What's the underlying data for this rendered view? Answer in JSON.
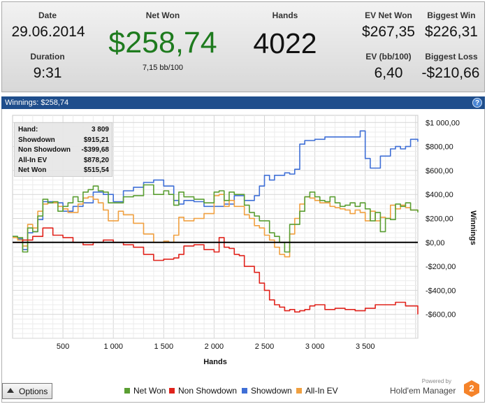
{
  "summary": {
    "date": {
      "label": "Date",
      "value": "29.06.2014"
    },
    "duration": {
      "label": "Duration",
      "value": "9:31"
    },
    "net_won": {
      "label": "Net Won",
      "value": "$258,74",
      "sub": "7,15 bb/100"
    },
    "hands": {
      "label": "Hands",
      "value": "4022"
    },
    "ev_net_won": {
      "label": "EV Net Won",
      "value": "$267,35"
    },
    "ev_bb100": {
      "label": "EV (bb/100)",
      "value": "6,40"
    },
    "biggest_win": {
      "label": "Biggest Win",
      "value": "$226,31"
    },
    "biggest_loss": {
      "label": "Biggest Loss",
      "value": "-$210,66"
    },
    "net_won_color": "#1e7b1e"
  },
  "panel": {
    "title": "Winnings:  $258,74",
    "help": "?"
  },
  "hand_box": [
    {
      "k": "Hand:",
      "v": "3 809"
    },
    {
      "k": "Showdown",
      "v": "$915,21"
    },
    {
      "k": "Non Showdown",
      "v": "-$399,68"
    },
    {
      "k": "All-In EV",
      "v": "$878,20"
    },
    {
      "k": "Net Won",
      "v": "$515,54"
    }
  ],
  "options_label": "Options",
  "brand": {
    "powered": "Powered by",
    "name": "Hold'em Manager",
    "logo": "2"
  },
  "chart_data": {
    "type": "line",
    "xlabel": "Hands",
    "ylabel": "Winnings",
    "xlim": [
      0,
      4022
    ],
    "ylim": [
      -800,
      1060
    ],
    "x_ticks": [
      500,
      1000,
      1500,
      2000,
      2500,
      3000,
      3500
    ],
    "x_tick_labels": [
      "500",
      "1 000",
      "1 500",
      "2 000",
      "2 500",
      "3 000",
      "3 500"
    ],
    "y_ticks": [
      1000,
      800,
      600,
      400,
      200,
      0,
      -200,
      -400,
      -600
    ],
    "y_tick_labels": [
      "$1 000,00",
      "$800,00",
      "$600,00",
      "$400,00",
      "$200,00",
      "$0,00",
      "-$200,00",
      "-$400,00",
      "-$600,00"
    ],
    "grid": true,
    "legend_position": "bottom",
    "series": [
      {
        "name": "Net Won",
        "color": "#5a9e32",
        "x": [
          0,
          50,
          100,
          150,
          200,
          250,
          300,
          350,
          400,
          450,
          500,
          550,
          600,
          650,
          700,
          750,
          800,
          850,
          900,
          950,
          1000,
          1100,
          1200,
          1300,
          1400,
          1500,
          1550,
          1600,
          1650,
          1700,
          1800,
          1900,
          2000,
          2050,
          2100,
          2150,
          2200,
          2300,
          2350,
          2400,
          2450,
          2500,
          2550,
          2600,
          2650,
          2700,
          2750,
          2800,
          2850,
          2900,
          2950,
          3000,
          3050,
          3100,
          3150,
          3200,
          3250,
          3300,
          3350,
          3400,
          3450,
          3500,
          3550,
          3600,
          3650,
          3700,
          3750,
          3800,
          3850,
          3900,
          3950,
          4022
        ],
        "y": [
          50,
          40,
          -80,
          120,
          90,
          220,
          360,
          330,
          340,
          260,
          300,
          330,
          380,
          340,
          420,
          440,
          470,
          430,
          420,
          330,
          330,
          380,
          390,
          480,
          400,
          430,
          400,
          310,
          420,
          380,
          360,
          330,
          420,
          430,
          350,
          420,
          400,
          310,
          250,
          220,
          180,
          180,
          80,
          50,
          0,
          -80,
          150,
          150,
          260,
          380,
          420,
          380,
          350,
          340,
          380,
          330,
          300,
          310,
          330,
          300,
          330,
          280,
          180,
          250,
          90,
          200,
          190,
          320,
          300,
          330,
          270,
          250
        ]
      },
      {
        "name": "Non Showdown",
        "color": "#e0231c",
        "x": [
          0,
          100,
          200,
          300,
          400,
          500,
          600,
          700,
          800,
          900,
          1000,
          1100,
          1200,
          1300,
          1400,
          1500,
          1600,
          1650,
          1700,
          1800,
          1900,
          2000,
          2050,
          2100,
          2150,
          2200,
          2250,
          2300,
          2400,
          2450,
          2500,
          2550,
          2600,
          2650,
          2700,
          2750,
          2800,
          2850,
          2900,
          2950,
          3000,
          3100,
          3200,
          3300,
          3400,
          3500,
          3600,
          3700,
          3800,
          3900,
          4022
        ],
        "y": [
          0,
          20,
          50,
          120,
          60,
          40,
          0,
          -20,
          0,
          20,
          0,
          -20,
          -40,
          -100,
          -150,
          -140,
          -130,
          -100,
          -30,
          -20,
          -60,
          -80,
          40,
          -40,
          -50,
          -100,
          -110,
          -200,
          -250,
          -340,
          -400,
          -480,
          -520,
          -540,
          -570,
          -560,
          -580,
          -570,
          -560,
          -530,
          -520,
          -560,
          -550,
          -560,
          -570,
          -550,
          -520,
          -520,
          -500,
          -530,
          -600
        ]
      },
      {
        "name": "Showdown",
        "color": "#3f6fd6",
        "x": [
          0,
          50,
          100,
          150,
          200,
          250,
          300,
          400,
          500,
          600,
          700,
          800,
          900,
          1000,
          1100,
          1200,
          1300,
          1400,
          1500,
          1600,
          1650,
          1700,
          1800,
          1900,
          2000,
          2100,
          2200,
          2300,
          2400,
          2450,
          2500,
          2550,
          2600,
          2700,
          2750,
          2800,
          2850,
          2900,
          3000,
          3100,
          3200,
          3300,
          3400,
          3450,
          3500,
          3550,
          3600,
          3650,
          3700,
          3750,
          3800,
          3850,
          3900,
          3950,
          4022
        ],
        "y": [
          50,
          30,
          -60,
          80,
          90,
          190,
          340,
          330,
          260,
          300,
          330,
          420,
          400,
          340,
          430,
          460,
          500,
          520,
          470,
          350,
          320,
          350,
          340,
          300,
          300,
          320,
          390,
          350,
          390,
          470,
          560,
          520,
          560,
          580,
          570,
          610,
          820,
          850,
          860,
          880,
          880,
          880,
          880,
          930,
          700,
          620,
          620,
          720,
          720,
          780,
          800,
          780,
          800,
          860,
          840
        ]
      },
      {
        "name": "All-In EV",
        "color": "#f0a040",
        "x": [
          0,
          50,
          100,
          150,
          200,
          250,
          300,
          350,
          400,
          450,
          500,
          550,
          600,
          650,
          700,
          750,
          800,
          850,
          900,
          950,
          1000,
          1050,
          1100,
          1200,
          1300,
          1400,
          1500,
          1550,
          1600,
          1650,
          1700,
          1800,
          1900,
          2000,
          2050,
          2100,
          2150,
          2200,
          2300,
          2350,
          2400,
          2450,
          2500,
          2550,
          2600,
          2650,
          2700,
          2750,
          2800,
          2850,
          2900,
          2950,
          3000,
          3050,
          3100,
          3150,
          3200,
          3250,
          3300,
          3350,
          3400,
          3450,
          3500,
          3550,
          3600,
          3650,
          3700,
          3750,
          3800,
          3850,
          3900,
          3950,
          4022
        ],
        "y": [
          40,
          20,
          -30,
          150,
          120,
          260,
          320,
          330,
          330,
          300,
          280,
          250,
          250,
          320,
          370,
          380,
          360,
          330,
          270,
          180,
          180,
          260,
          230,
          160,
          70,
          0,
          10,
          0,
          60,
          210,
          180,
          200,
          240,
          390,
          400,
          300,
          350,
          300,
          230,
          200,
          140,
          120,
          60,
          20,
          -40,
          -100,
          -120,
          70,
          200,
          320,
          380,
          370,
          350,
          330,
          330,
          300,
          290,
          280,
          270,
          240,
          270,
          250,
          180,
          260,
          180,
          210,
          200,
          310,
          280,
          310,
          290,
          270,
          260
        ]
      }
    ],
    "zero_line": 0
  }
}
